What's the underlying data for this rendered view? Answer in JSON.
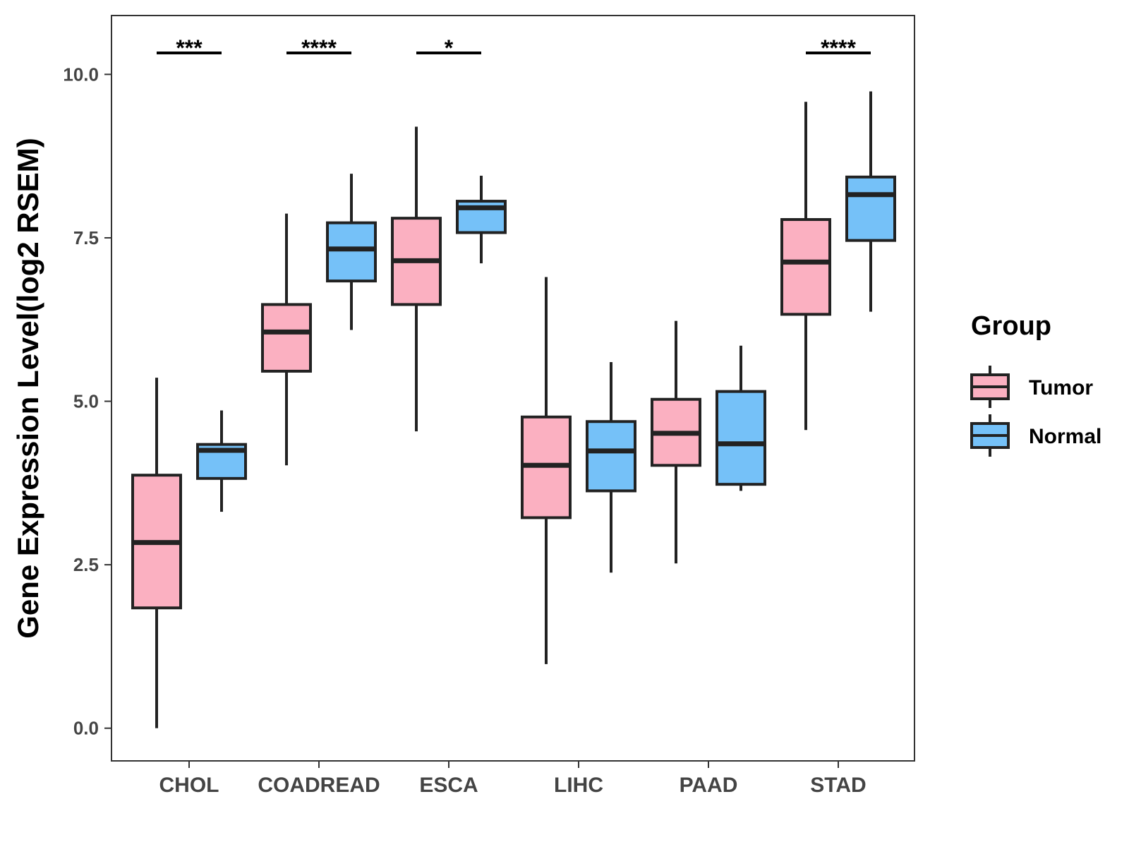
{
  "chart_data": {
    "type": "boxplot",
    "title": "",
    "xlabel": "",
    "ylabel": "Gene Expression Level(log2 RSEM)",
    "ylim": [
      -0.5,
      10.9
    ],
    "yticks": [
      0.0,
      2.5,
      5.0,
      7.5,
      10.0
    ],
    "ytick_labels": [
      "0.0",
      "2.5",
      "5.0",
      "7.5",
      "10.0"
    ],
    "grid": false,
    "categories": [
      "CHOL",
      "COADREAD",
      "ESCA",
      "LIHC",
      "PAAD",
      "STAD"
    ],
    "legend": {
      "title": "Group",
      "position": "right",
      "entries": [
        {
          "name": "Tumor",
          "color": "#FBB0C1"
        },
        {
          "name": "Normal",
          "color": "#75C1F8"
        }
      ]
    },
    "series": [
      {
        "name": "Tumor",
        "color": "#FBB0C1",
        "boxes": [
          {
            "category": "CHOL",
            "min": 0.0,
            "q1": 1.84,
            "median": 2.84,
            "q3": 3.87,
            "max": 5.36
          },
          {
            "category": "COADREAD",
            "min": 4.02,
            "q1": 5.46,
            "median": 6.06,
            "q3": 6.48,
            "max": 7.87
          },
          {
            "category": "ESCA",
            "min": 4.54,
            "q1": 6.48,
            "median": 7.15,
            "q3": 7.8,
            "max": 9.2
          },
          {
            "category": "LIHC",
            "min": 0.98,
            "q1": 3.22,
            "median": 4.02,
            "q3": 4.76,
            "max": 6.9
          },
          {
            "category": "PAAD",
            "min": 2.52,
            "q1": 4.02,
            "median": 4.51,
            "q3": 5.03,
            "max": 6.23
          },
          {
            "category": "STAD",
            "min": 4.56,
            "q1": 6.33,
            "median": 7.13,
            "q3": 7.78,
            "max": 9.58
          }
        ]
      },
      {
        "name": "Normal",
        "color": "#75C1F8",
        "boxes": [
          {
            "category": "CHOL",
            "min": 3.31,
            "q1": 3.82,
            "median": 4.25,
            "q3": 4.34,
            "max": 4.86
          },
          {
            "category": "COADREAD",
            "min": 6.09,
            "q1": 6.84,
            "median": 7.33,
            "q3": 7.73,
            "max": 8.48
          },
          {
            "category": "ESCA",
            "min": 7.11,
            "q1": 7.58,
            "median": 7.96,
            "q3": 8.06,
            "max": 8.45
          },
          {
            "category": "LIHC",
            "min": 2.38,
            "q1": 3.63,
            "median": 4.24,
            "q3": 4.69,
            "max": 5.6
          },
          {
            "category": "PAAD",
            "min": 3.63,
            "q1": 3.73,
            "median": 4.35,
            "q3": 5.15,
            "max": 5.85
          },
          {
            "category": "STAD",
            "min": 6.37,
            "q1": 7.46,
            "median": 8.16,
            "q3": 8.43,
            "max": 9.74
          }
        ]
      }
    ],
    "significance": [
      {
        "category": "CHOL",
        "label": "***"
      },
      {
        "category": "COADREAD",
        "label": "****"
      },
      {
        "category": "ESCA",
        "label": "*"
      },
      {
        "category": "STAD",
        "label": "****"
      }
    ]
  }
}
